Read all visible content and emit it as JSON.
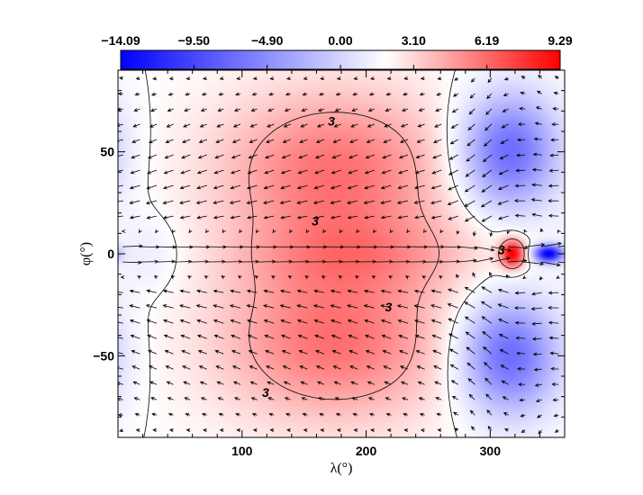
{
  "chart_data": {
    "type": "heatmap",
    "title": "",
    "xlabel": "λ(°)",
    "ylabel": "φ(°)",
    "xlim": [
      0,
      360
    ],
    "ylim": [
      -90,
      90
    ],
    "x_ticks": [
      100,
      200,
      300
    ],
    "x_tick_labels": [
      "100",
      "200",
      "300"
    ],
    "y_ticks": [
      50,
      0,
      -50
    ],
    "y_tick_labels": [
      "50",
      "0",
      "−50"
    ],
    "colorbar": {
      "placement": "top",
      "min": -14.09,
      "max": 9.29,
      "tick_values": [
        -14.09,
        -9.5,
        -4.9,
        0.0,
        3.1,
        6.19,
        9.29
      ],
      "tick_labels": [
        "−14.09",
        "−9.50",
        "−4.90",
        "0.00",
        "3.10",
        "6.19",
        "9.29"
      ],
      "negative_color": "#0000ff",
      "zero_color": "#ffffff",
      "positive_color": "#ff0000"
    },
    "field_features": [
      {
        "name": "north-warm-lobe",
        "lon": 175,
        "lat": 40,
        "value": 5.2,
        "sig_lon": 65,
        "sig_lat": 28
      },
      {
        "name": "south-warm-lobe",
        "lon": 175,
        "lat": -42,
        "value": 5.2,
        "sig_lon": 65,
        "sig_lat": 28
      },
      {
        "name": "equatorial-warm-band",
        "lon": 200,
        "lat": 0,
        "value": 2.2,
        "sig_lon": 70,
        "sig_lat": 14
      },
      {
        "name": "north-cold-lobe",
        "lon": 315,
        "lat": 50,
        "value": -8.5,
        "sig_lon": 28,
        "sig_lat": 20
      },
      {
        "name": "south-cold-lobe",
        "lon": 315,
        "lat": -50,
        "value": -8.5,
        "sig_lon": 28,
        "sig_lat": 20
      },
      {
        "name": "east-equatorial-hotspot",
        "lon": 318,
        "lat": 0,
        "value": 9.29,
        "sig_lon": 7,
        "sig_lat": 5
      },
      {
        "name": "east-equatorial-coldspot",
        "lon": 347,
        "lat": 0,
        "value": -14.09,
        "sig_lon": 8,
        "sig_lat": 3
      },
      {
        "name": "west-cool-patch",
        "lon": 25,
        "lat": 0,
        "value": -1.2,
        "sig_lon": 22,
        "sig_lat": 14
      }
    ],
    "contours": [
      {
        "level": 0,
        "style": "solid",
        "label": ""
      },
      {
        "level": 3,
        "style": "solid",
        "label": "3"
      }
    ],
    "contour_labels": [
      {
        "text": "3",
        "lon": 172,
        "lat": 65
      },
      {
        "text": "3",
        "lon": 159,
        "lat": 16
      },
      {
        "text": "3",
        "lon": 218,
        "lat": -26
      },
      {
        "text": "3",
        "lon": 119,
        "lat": -68
      },
      {
        "text": "3",
        "lon": 309,
        "lat": 2
      }
    ],
    "vector_field": {
      "description": "wind arrows: westward in mid-latitudes, strong eastward equatorial jet",
      "grid_spacing_lon": 13.5,
      "grid_spacing_lat": 7.5
    }
  }
}
